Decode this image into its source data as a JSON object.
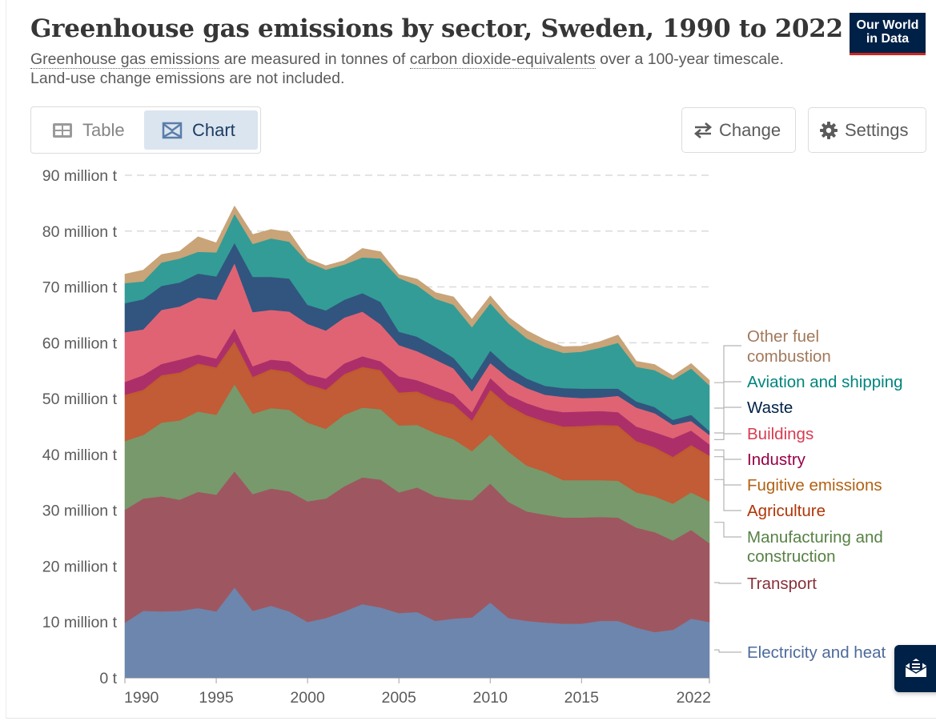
{
  "header": {
    "title": "Greenhouse gas emissions by sector, Sweden, 1990 to 2022",
    "subtitle_parts": {
      "link1": "Greenhouse gas emissions",
      "text1": " are measured in tonnes of ",
      "link2": "carbon dioxide-equivalents",
      "text2": " over a 100-year timescale. Land-use change emissions are not included."
    },
    "logo_line1": "Our World",
    "logo_line2": "in Data"
  },
  "toolbar": {
    "tabs": [
      {
        "label": "Table",
        "icon": "table-icon",
        "active": false
      },
      {
        "label": "Chart",
        "icon": "chart-icon",
        "active": true
      }
    ],
    "change_label": "Change",
    "settings_label": "Settings"
  },
  "feedback_button": {
    "icon": "envelope-open-icon"
  },
  "chart_data": {
    "type": "area",
    "stacked": true,
    "title": "Greenhouse gas emissions by sector, Sweden, 1990 to 2022",
    "xlabel": "",
    "ylabel": "",
    "unit": "million t",
    "x": [
      1990,
      1991,
      1992,
      1993,
      1994,
      1995,
      1996,
      1997,
      1998,
      1999,
      2000,
      2001,
      2002,
      2003,
      2004,
      2005,
      2006,
      2007,
      2008,
      2009,
      2010,
      2011,
      2012,
      2013,
      2014,
      2015,
      2016,
      2017,
      2018,
      2019,
      2020,
      2021,
      2022
    ],
    "xticks": [
      "1990",
      "1995",
      "2000",
      "2005",
      "2010",
      "2015",
      "2022"
    ],
    "xtick_values": [
      1990,
      1995,
      2000,
      2005,
      2010,
      2015,
      2022
    ],
    "yticks": [
      "0 t",
      "10 million t",
      "20 million t",
      "30 million t",
      "40 million t",
      "50 million t",
      "60 million t",
      "70 million t",
      "80 million t",
      "90 million t"
    ],
    "ytick_values": [
      0,
      10,
      20,
      30,
      40,
      50,
      60,
      70,
      80,
      90
    ],
    "ylim": [
      0,
      90
    ],
    "xlim": [
      1990,
      2022
    ],
    "grid": true,
    "legend_position": "right-inline",
    "series": [
      {
        "name": "Electricity and heat",
        "color": "#6d86ad",
        "label_color": "#4c6a9c",
        "values": [
          9.9,
          12.0,
          11.9,
          12.0,
          12.5,
          11.9,
          16.2,
          12.0,
          12.9,
          11.9,
          10.0,
          10.7,
          11.9,
          13.2,
          12.6,
          11.6,
          11.8,
          10.2,
          10.6,
          10.8,
          13.5,
          10.7,
          10.2,
          9.9,
          9.7,
          9.7,
          10.2,
          10.2,
          9.0,
          8.2,
          8.6,
          10.6,
          10.0
        ]
      },
      {
        "name": "Transport",
        "color": "#9e5760",
        "label_color": "#883039",
        "values": [
          20.2,
          20.1,
          20.6,
          19.9,
          20.8,
          20.9,
          20.8,
          20.9,
          21.0,
          21.5,
          21.6,
          21.4,
          22.4,
          22.7,
          22.9,
          21.6,
          22.3,
          22.3,
          21.4,
          21.0,
          21.3,
          20.8,
          19.6,
          19.3,
          19.0,
          19.0,
          18.6,
          18.5,
          17.9,
          17.9,
          16.0,
          15.9,
          14.1
        ]
      },
      {
        "name": "Manufacturing and construction",
        "color": "#78996b",
        "label_color": "#578145",
        "values": [
          12.3,
          11.4,
          13.2,
          14.2,
          14.4,
          14.3,
          15.6,
          14.4,
          14.4,
          14.6,
          14.1,
          12.5,
          12.8,
          12.5,
          12.6,
          12.0,
          11.2,
          11.3,
          10.7,
          8.8,
          8.8,
          9.0,
          8.2,
          7.7,
          6.7,
          6.7,
          6.6,
          6.6,
          6.3,
          6.4,
          6.6,
          6.7,
          7.5
        ]
      },
      {
        "name": "Agriculture",
        "color": "#c15c36",
        "label_color": "#b13507",
        "values": [
          7.9,
          7.7,
          8.1,
          8.2,
          8.2,
          8.1,
          7.3,
          6.2,
          6.6,
          6.4,
          6.5,
          6.6,
          6.9,
          6.9,
          6.6,
          5.5,
          5.6,
          5.7,
          5.9,
          5.1,
          7.6,
          7.9,
          8.6,
          8.6,
          9.2,
          9.3,
          9.5,
          9.5,
          8.8,
          8.4,
          8.0,
          8.1,
          7.8
        ]
      },
      {
        "name": "Fugitive emissions",
        "color": "#c05a30",
        "label_color": "#b16214",
        "values": [
          0.4,
          0.4,
          0.4,
          0.4,
          0.4,
          0.4,
          0.4,
          0.4,
          0.4,
          0.4,
          0.4,
          0.4,
          0.4,
          0.4,
          0.4,
          0.4,
          0.4,
          0.4,
          0.4,
          0.4,
          0.4,
          0.4,
          0.4,
          0.4,
          0.4,
          0.4,
          0.4,
          0.4,
          0.4,
          0.4,
          0.4,
          0.4,
          0.4
        ]
      },
      {
        "name": "Industry",
        "color": "#ad2f69",
        "label_color": "#970046",
        "values": [
          2.3,
          2.6,
          2.0,
          2.3,
          1.6,
          1.6,
          2.3,
          1.9,
          1.7,
          1.9,
          1.8,
          2.0,
          1.9,
          1.9,
          1.6,
          2.9,
          2.0,
          2.2,
          1.8,
          1.5,
          2.1,
          1.9,
          2.2,
          2.2,
          2.6,
          2.6,
          2.5,
          2.4,
          2.6,
          2.7,
          3.3,
          2.6,
          2.0
        ]
      },
      {
        "name": "Buildings",
        "color": "#e06374",
        "label_color": "#d73c50",
        "values": [
          8.9,
          8.2,
          9.7,
          9.5,
          10.2,
          10.5,
          11.7,
          9.7,
          8.9,
          8.9,
          9.0,
          8.6,
          8.2,
          8.0,
          6.6,
          5.6,
          5.2,
          4.9,
          4.6,
          3.7,
          2.7,
          3.0,
          2.7,
          2.6,
          2.7,
          2.4,
          2.4,
          2.9,
          3.4,
          3.4,
          2.4,
          1.7,
          1.7
        ]
      },
      {
        "name": "Waste",
        "color": "#31557f",
        "label_color": "#002147",
        "values": [
          5.2,
          5.4,
          4.3,
          4.3,
          4.3,
          4.2,
          3.6,
          6.3,
          5.9,
          5.9,
          3.4,
          3.6,
          3.2,
          3.3,
          4.0,
          2.4,
          2.6,
          2.3,
          1.9,
          2.1,
          2.2,
          1.9,
          1.7,
          1.6,
          1.6,
          1.7,
          1.6,
          1.3,
          1.1,
          1.1,
          0.9,
          1.1,
          0.7
        ]
      },
      {
        "name": "Aviation and shipping",
        "color": "#339c96",
        "label_color": "#00847e",
        "values": [
          3.6,
          3.2,
          4.2,
          4.3,
          3.9,
          4.3,
          5.2,
          5.9,
          6.9,
          6.6,
          7.7,
          7.3,
          6.3,
          6.4,
          7.8,
          9.6,
          9.2,
          8.6,
          9.5,
          9.4,
          8.5,
          7.9,
          7.2,
          6.9,
          6.3,
          6.6,
          7.3,
          8.2,
          6.2,
          6.6,
          7.2,
          8.3,
          8.2
        ]
      },
      {
        "name": "Other fuel combustion",
        "color": "#c8a478",
        "label_color": "#a2785a",
        "values": [
          1.6,
          2.0,
          1.4,
          1.3,
          2.7,
          1.7,
          1.4,
          1.7,
          1.6,
          1.7,
          0.6,
          0.7,
          0.7,
          1.6,
          1.2,
          0.6,
          1.1,
          1.1,
          1.4,
          1.4,
          1.3,
          1.1,
          1.4,
          1.3,
          1.1,
          1.0,
          1.1,
          1.4,
          1.0,
          1.0,
          0.7,
          0.9,
          0.9
        ]
      }
    ],
    "legend_order": [
      "Other fuel combustion",
      "Aviation and shipping",
      "Waste",
      "Buildings",
      "Industry",
      "Fugitive emissions",
      "Agriculture",
      "Manufacturing and construction",
      "Transport",
      "Electricity and heat"
    ]
  }
}
